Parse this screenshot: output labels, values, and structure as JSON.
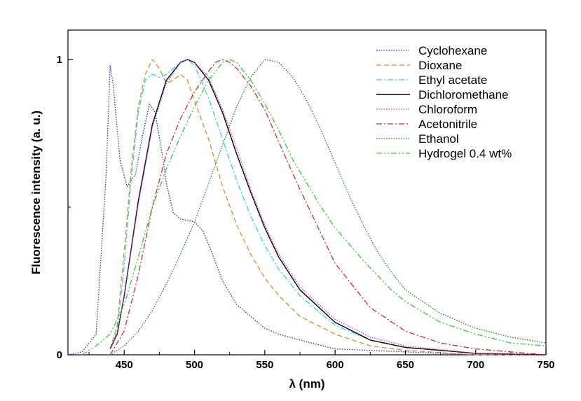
{
  "chart_data": {
    "type": "line",
    "title": "",
    "xlabel": "λ (nm)",
    "ylabel": "Fluorescence intensity (a. u.)",
    "xlim": [
      410,
      750
    ],
    "ylim": [
      0,
      1.0
    ],
    "xticks": [
      450,
      500,
      550,
      600,
      650,
      700,
      750
    ],
    "xtick_labels": [
      "450",
      "500",
      "550",
      "600",
      "650",
      "700",
      "750"
    ],
    "yticks": [
      0,
      1
    ],
    "ytick_labels": [
      "0",
      "1"
    ],
    "grid": false,
    "legend_position": "top-right",
    "series": [
      {
        "name": "Cyclohexane",
        "color": "#2a2ab8",
        "dash": "dotted",
        "points": [
          [
            410,
            0.0
          ],
          [
            420,
            0.01
          ],
          [
            430,
            0.07
          ],
          [
            437,
            0.6
          ],
          [
            440,
            0.98
          ],
          [
            442,
            0.92
          ],
          [
            447,
            0.66
          ],
          [
            452,
            0.57
          ],
          [
            458,
            0.61
          ],
          [
            463,
            0.74
          ],
          [
            468,
            0.85
          ],
          [
            472,
            0.82
          ],
          [
            477,
            0.68
          ],
          [
            480,
            0.58
          ],
          [
            485,
            0.48
          ],
          [
            490,
            0.46
          ],
          [
            500,
            0.45
          ],
          [
            506,
            0.42
          ],
          [
            512,
            0.35
          ],
          [
            520,
            0.25
          ],
          [
            530,
            0.17
          ],
          [
            540,
            0.13
          ],
          [
            550,
            0.09
          ],
          [
            560,
            0.07
          ],
          [
            575,
            0.05
          ],
          [
            600,
            0.02
          ],
          [
            650,
            0.01
          ],
          [
            700,
            0.0
          ],
          [
            750,
            0.0
          ]
        ]
      },
      {
        "name": "Dioxane",
        "color": "#e08a2a",
        "dash": "dashed",
        "points": [
          [
            440,
            0.02
          ],
          [
            445,
            0.1
          ],
          [
            450,
            0.35
          ],
          [
            455,
            0.63
          ],
          [
            460,
            0.84
          ],
          [
            465,
            0.95
          ],
          [
            470,
            1.0
          ],
          [
            475,
            0.97
          ],
          [
            480,
            0.92
          ],
          [
            485,
            0.93
          ],
          [
            490,
            0.95
          ],
          [
            495,
            0.93
          ],
          [
            500,
            0.86
          ],
          [
            510,
            0.73
          ],
          [
            520,
            0.57
          ],
          [
            530,
            0.44
          ],
          [
            540,
            0.34
          ],
          [
            550,
            0.26
          ],
          [
            560,
            0.2
          ],
          [
            575,
            0.13
          ],
          [
            600,
            0.07
          ],
          [
            625,
            0.03
          ],
          [
            650,
            0.015
          ],
          [
            700,
            0.0
          ],
          [
            750,
            0.0
          ]
        ]
      },
      {
        "name": "Ethyl acetate",
        "color": "#25d6e0",
        "dash": "dashdot",
        "points": [
          [
            440,
            0.02
          ],
          [
            445,
            0.08
          ],
          [
            450,
            0.3
          ],
          [
            455,
            0.6
          ],
          [
            460,
            0.82
          ],
          [
            465,
            0.93
          ],
          [
            470,
            0.95
          ],
          [
            475,
            0.94
          ],
          [
            480,
            0.95
          ],
          [
            485,
            0.97
          ],
          [
            490,
            0.99
          ],
          [
            495,
            1.0
          ],
          [
            500,
            0.98
          ],
          [
            510,
            0.87
          ],
          [
            520,
            0.73
          ],
          [
            530,
            0.59
          ],
          [
            540,
            0.47
          ],
          [
            550,
            0.37
          ],
          [
            560,
            0.29
          ],
          [
            575,
            0.2
          ],
          [
            600,
            0.1
          ],
          [
            625,
            0.05
          ],
          [
            650,
            0.025
          ],
          [
            700,
            0.005
          ],
          [
            750,
            0.0
          ]
        ]
      },
      {
        "name": "Dichloromethane",
        "color": "#000000",
        "dash": "solid",
        "points": [
          [
            440,
            0.02
          ],
          [
            445,
            0.07
          ],
          [
            450,
            0.2
          ],
          [
            460,
            0.52
          ],
          [
            470,
            0.78
          ],
          [
            480,
            0.93
          ],
          [
            490,
            0.99
          ],
          [
            495,
            1.0
          ],
          [
            500,
            0.99
          ],
          [
            510,
            0.93
          ],
          [
            520,
            0.82
          ],
          [
            530,
            0.68
          ],
          [
            540,
            0.55
          ],
          [
            550,
            0.43
          ],
          [
            560,
            0.33
          ],
          [
            575,
            0.22
          ],
          [
            600,
            0.11
          ],
          [
            625,
            0.05
          ],
          [
            650,
            0.025
          ],
          [
            700,
            0.005
          ],
          [
            750,
            0.0
          ]
        ]
      },
      {
        "name": "Chloroform",
        "color": "#d42ad4",
        "dash": "dotted",
        "points": [
          [
            440,
            0.02
          ],
          [
            445,
            0.07
          ],
          [
            450,
            0.2
          ],
          [
            460,
            0.51
          ],
          [
            470,
            0.77
          ],
          [
            480,
            0.92
          ],
          [
            490,
            0.99
          ],
          [
            495,
            1.0
          ],
          [
            500,
            0.99
          ],
          [
            510,
            0.94
          ],
          [
            520,
            0.83
          ],
          [
            530,
            0.7
          ],
          [
            540,
            0.56
          ],
          [
            550,
            0.44
          ],
          [
            560,
            0.34
          ],
          [
            575,
            0.23
          ],
          [
            600,
            0.12
          ],
          [
            625,
            0.06
          ],
          [
            650,
            0.03
          ],
          [
            700,
            0.005
          ],
          [
            750,
            0.0
          ]
        ]
      },
      {
        "name": "Acetonitrile",
        "color": "#d42a2a",
        "dash": "dashdot",
        "points": [
          [
            440,
            0.0
          ],
          [
            450,
            0.08
          ],
          [
            460,
            0.27
          ],
          [
            470,
            0.5
          ],
          [
            480,
            0.68
          ],
          [
            490,
            0.8
          ],
          [
            500,
            0.89
          ],
          [
            510,
            0.96
          ],
          [
            515,
            0.99
          ],
          [
            520,
            1.0
          ],
          [
            525,
            0.99
          ],
          [
            530,
            0.97
          ],
          [
            540,
            0.91
          ],
          [
            550,
            0.83
          ],
          [
            560,
            0.72
          ],
          [
            575,
            0.56
          ],
          [
            600,
            0.31
          ],
          [
            625,
            0.16
          ],
          [
            650,
            0.08
          ],
          [
            675,
            0.04
          ],
          [
            700,
            0.02
          ],
          [
            750,
            0.0
          ]
        ]
      },
      {
        "name": "Ethanol",
        "color": "#1f7a1f",
        "dash": "dotted",
        "points": [
          [
            440,
            0.0
          ],
          [
            450,
            0.03
          ],
          [
            460,
            0.08
          ],
          [
            470,
            0.15
          ],
          [
            480,
            0.24
          ],
          [
            490,
            0.34
          ],
          [
            500,
            0.45
          ],
          [
            510,
            0.58
          ],
          [
            520,
            0.71
          ],
          [
            530,
            0.84
          ],
          [
            540,
            0.94
          ],
          [
            550,
            1.0
          ],
          [
            560,
            0.99
          ],
          [
            570,
            0.94
          ],
          [
            580,
            0.86
          ],
          [
            590,
            0.76
          ],
          [
            600,
            0.65
          ],
          [
            610,
            0.54
          ],
          [
            620,
            0.44
          ],
          [
            630,
            0.35
          ],
          [
            640,
            0.28
          ],
          [
            650,
            0.22
          ],
          [
            675,
            0.14
          ],
          [
            700,
            0.09
          ],
          [
            725,
            0.06
          ],
          [
            750,
            0.04
          ]
        ]
      },
      {
        "name": "Hydrogel 0.4 wt%",
        "color": "#2ad42a",
        "dash": "dashdotdot",
        "points": [
          [
            420,
            0.0
          ],
          [
            430,
            0.03
          ],
          [
            440,
            0.07
          ],
          [
            450,
            0.17
          ],
          [
            460,
            0.33
          ],
          [
            470,
            0.5
          ],
          [
            480,
            0.63
          ],
          [
            490,
            0.74
          ],
          [
            500,
            0.84
          ],
          [
            510,
            0.93
          ],
          [
            520,
            0.99
          ],
          [
            525,
            1.0
          ],
          [
            530,
            0.99
          ],
          [
            540,
            0.93
          ],
          [
            550,
            0.85
          ],
          [
            560,
            0.76
          ],
          [
            570,
            0.66
          ],
          [
            580,
            0.58
          ],
          [
            590,
            0.5
          ],
          [
            600,
            0.43
          ],
          [
            620,
            0.32
          ],
          [
            640,
            0.22
          ],
          [
            650,
            0.18
          ],
          [
            675,
            0.11
          ],
          [
            700,
            0.07
          ],
          [
            725,
            0.04
          ],
          [
            750,
            0.03
          ]
        ]
      }
    ]
  }
}
